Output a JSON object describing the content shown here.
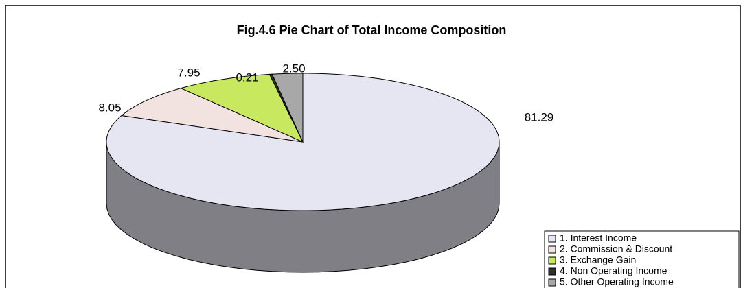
{
  "chart_data": {
    "type": "pie",
    "title": "Fig.4.6 Pie Chart of Total Income Composition",
    "categories": [
      "1. Interest Income",
      "2. Commission & Discount",
      "3. Exchange Gain",
      "4. Non Operating Income",
      "5. Other Operating Income"
    ],
    "values": [
      81.29,
      8.05,
      7.95,
      0.21,
      2.5
    ],
    "value_labels": [
      "81.29",
      "8.05",
      "7.95",
      "0.21",
      "2.50"
    ],
    "colors": [
      "#e6e6f2",
      "#f2e2e0",
      "#c8e860",
      "#303030",
      "#a8a8a8"
    ],
    "legend": "lower right"
  }
}
